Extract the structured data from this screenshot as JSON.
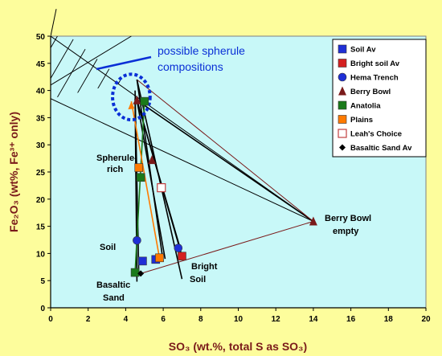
{
  "chart_data": {
    "type": "scatter",
    "xlabel": "SO₃ (wt.%, total S as SO₃)",
    "ylabel": "Fe₂O₃ (wt%, Fe³⁺ only)",
    "xlim": [
      0,
      20
    ],
    "ylim": [
      0,
      50
    ],
    "x_ticks": [
      "0",
      "2",
      "4",
      "6",
      "8",
      "10",
      "12",
      "14",
      "16",
      "18",
      "20"
    ],
    "y_ticks": [
      "0",
      "5",
      "10",
      "15",
      "20",
      "25",
      "30",
      "35",
      "40",
      "45",
      "50"
    ],
    "grid": false,
    "legend_position": "top-right",
    "colors": {
      "plot_bg": "#c8f8f8",
      "outer_bg": "#fdfd9c",
      "annotation_blue": "#0a2fd6",
      "axis_title": "#7a1a1a"
    },
    "series": [
      {
        "name": "Soil Av",
        "marker": "square",
        "color": "#1f2fd6",
        "points": [
          [
            4.9,
            8.6
          ],
          [
            5.6,
            8.9
          ]
        ]
      },
      {
        "name": "Bright soil Av",
        "marker": "square",
        "color": "#d42020",
        "points": [
          [
            7.0,
            9.5
          ]
        ]
      },
      {
        "name": "Hema Trench",
        "marker": "circle",
        "color": "#1f2fd6",
        "points": [
          [
            4.6,
            12.4
          ],
          [
            6.8,
            11.0
          ]
        ]
      },
      {
        "name": "Berry Bowl",
        "marker": "triangle",
        "color": "#7a1a1a",
        "points": [
          [
            4.6,
            38.2
          ],
          [
            5.4,
            27.2
          ],
          [
            14.0,
            15.9
          ]
        ]
      },
      {
        "name": "Anatolia",
        "marker": "square",
        "color": "#1a7a1a",
        "points": [
          [
            5.0,
            38.0
          ],
          [
            4.8,
            24.0
          ],
          [
            4.5,
            6.5
          ]
        ]
      },
      {
        "name": "Plains",
        "marker": "square",
        "color": "#ff7a00",
        "points": [
          [
            4.7,
            25.8
          ],
          [
            5.8,
            9.2
          ]
        ]
      },
      {
        "name": "Leah's Choice",
        "marker": "open-square",
        "color": "#c04040",
        "points": [
          [
            5.9,
            22.1
          ]
        ]
      },
      {
        "name": "Basaltic Sand Av",
        "marker": "diamond",
        "color": "#000000",
        "points": [
          [
            4.8,
            6.3
          ]
        ]
      }
    ],
    "mixing_lines": [
      {
        "color": "#000000",
        "from": [
          4.6,
          38.2
        ],
        "to": [
          14.0,
          15.9
        ]
      },
      {
        "color": "#7a1a1a",
        "from": [
          4.8,
          6.3
        ],
        "to": [
          14.0,
          15.9
        ]
      },
      {
        "color": "#7a1a1a",
        "from": [
          4.6,
          42.0
        ],
        "to": [
          14.0,
          15.9
        ]
      },
      {
        "color": "#000000",
        "from": [
          4.6,
          38.2
        ],
        "to": [
          6.1,
          9.0
        ]
      },
      {
        "color": "#000000",
        "from": [
          4.6,
          38.2
        ],
        "to": [
          7.0,
          9.5
        ]
      },
      {
        "color": "#000000",
        "from": [
          4.6,
          38.2
        ],
        "to": [
          6.9,
          11.0
        ]
      },
      {
        "color": "#000000",
        "from": [
          4.6,
          42.0
        ],
        "to": [
          6.0,
          8.5
        ]
      },
      {
        "color": "#000000",
        "from": [
          4.6,
          42.0
        ],
        "to": [
          7.0,
          5.3
        ]
      },
      {
        "color": "#000000",
        "from": [
          4.5,
          38.5
        ],
        "to": [
          4.6,
          4.8
        ]
      },
      {
        "color": "#000000",
        "from": [
          4.5,
          40.0
        ],
        "to": [
          4.7,
          6.0
        ]
      },
      {
        "color": "#1a7a1a",
        "from": [
          5.0,
          38.0
        ],
        "to": [
          4.5,
          6.5
        ]
      },
      {
        "color": "#ff7a00",
        "from": [
          5.8,
          9.2
        ],
        "to": [
          4.3,
          38.0
        ]
      }
    ],
    "boundary_lines": [
      {
        "from": [
          0,
          50.0
        ],
        "to": [
          14.0,
          15.9
        ]
      },
      {
        "from": [
          0,
          41.0
        ],
        "to": [
          4.3,
          50.0
        ]
      },
      {
        "from": [
          0,
          38.5
        ],
        "to": [
          14.0,
          15.9
        ]
      },
      {
        "from": [
          0,
          50.0
        ],
        "to": [
          0.3,
          55.0
        ]
      }
    ],
    "hatched_region": [
      [
        0,
        50.0
      ],
      [
        1.0,
        50.0
      ],
      [
        4.0,
        41.5
      ],
      [
        0,
        38.5
      ]
    ],
    "highlight_circle": {
      "center": [
        4.3,
        38.8
      ],
      "radius_x": 1.0,
      "radius_y": 4.2
    },
    "annotations": [
      {
        "text": "possible spherule",
        "line": 1
      },
      {
        "text": "compositions",
        "line": 2
      },
      {
        "text": "Spherule-",
        "line": 1
      },
      {
        "text": "rich",
        "line": 2
      },
      {
        "text": "Soil"
      },
      {
        "text": "Basaltic",
        "line": 1
      },
      {
        "text": "Sand",
        "line": 2
      },
      {
        "text": "Bright",
        "line": 1
      },
      {
        "text": "Soil",
        "line": 2
      },
      {
        "text": "Berry Bowl",
        "line": 1
      },
      {
        "text": "empty",
        "line": 2
      }
    ]
  }
}
